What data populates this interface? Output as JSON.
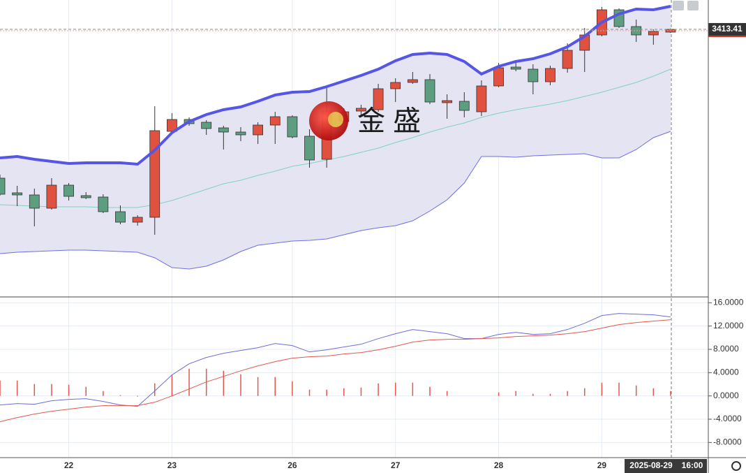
{
  "watermark": "金 盛",
  "crosshair": {
    "date": "2025-08-29",
    "time": "16:00"
  },
  "chart_data": [
    {
      "type": "candlestick",
      "categories": [
        null,
        null,
        null,
        null,
        "22",
        null,
        null,
        null,
        null,
        null,
        "23",
        null,
        null,
        null,
        null,
        null,
        null,
        "26",
        null,
        null,
        null,
        null,
        null,
        "27",
        null,
        null,
        null,
        null,
        null,
        "28",
        null,
        null,
        null,
        null,
        null,
        "29",
        null,
        null,
        null,
        null
      ],
      "open": [
        3349.5,
        3343.2,
        3342.3,
        3336.6,
        3346.5,
        3342.0,
        3341.4,
        3335.1,
        3330.6,
        3332.7,
        3369.6,
        3374.7,
        3373.5,
        3371.1,
        3369.3,
        3368.1,
        3372.3,
        3375.9,
        3367.5,
        3357.6,
        3373.8,
        3378.3,
        3378.9,
        3387.9,
        3390.6,
        3391.8,
        3381.9,
        3382.5,
        3378.0,
        3389.1,
        3397.2,
        3396.3,
        3390.9,
        3396.6,
        3404.4,
        3411.0,
        3421.8,
        3414.6,
        3411.0,
        3412.2
      ],
      "high": [
        3351.0,
        3346.2,
        3345.0,
        3349.5,
        3347.4,
        3343.5,
        3342.6,
        3337.8,
        3333.6,
        3380.4,
        3377.4,
        3375.6,
        3374.4,
        3372.0,
        3371.4,
        3373.5,
        3378.0,
        3376.5,
        3370.5,
        3388.2,
        3379.5,
        3381.0,
        3390.0,
        3392.4,
        3395.1,
        3394.2,
        3385.5,
        3386.4,
        3391.5,
        3399.0,
        3399.6,
        3398.4,
        3397.8,
        3407.4,
        3414.0,
        3423.0,
        3422.4,
        3417.6,
        3413.4,
        3413.8
      ],
      "low": [
        3342.0,
        3337.5,
        3328.8,
        3336.0,
        3339.9,
        3340.5,
        3334.5,
        3329.7,
        3329.1,
        3325.2,
        3369.0,
        3372.0,
        3368.1,
        3361.8,
        3365.4,
        3364.2,
        3364.2,
        3366.6,
        3354.0,
        3354.0,
        3373.2,
        3376.5,
        3378.0,
        3382.2,
        3390.0,
        3381.3,
        3375.0,
        3375.6,
        3376.2,
        3388.5,
        3395.4,
        3385.5,
        3389.4,
        3394.8,
        3395.1,
        3410.4,
        3414.0,
        3408.0,
        3406.8,
        3411.9
      ],
      "close": [
        3342.6,
        3342.3,
        3336.6,
        3346.5,
        3341.7,
        3341.1,
        3335.1,
        3330.6,
        3332.7,
        3369.9,
        3374.7,
        3372.9,
        3370.8,
        3369.3,
        3368.1,
        3372.3,
        3375.9,
        3367.2,
        3357.3,
        3378.3,
        3378.0,
        3379.5,
        3387.9,
        3390.6,
        3391.8,
        3382.2,
        3382.8,
        3378.6,
        3389.1,
        3396.9,
        3396.3,
        3390.9,
        3396.6,
        3404.4,
        3411.0,
        3421.8,
        3414.6,
        3411.0,
        3412.5,
        3413.41
      ],
      "up_color": "#e0513f",
      "down_color": "#5e9e80",
      "band_fill": "#e4e4f3",
      "series": [
        {
          "color": "#5656e6",
          "values": [
            3358.2,
            3358.8,
            3357.6,
            3356.7,
            3355.8,
            3356.1,
            3356.1,
            3356.1,
            3355.5,
            3361.5,
            3369.0,
            3373.8,
            3376.8,
            3378.9,
            3380.1,
            3382.5,
            3385.2,
            3386.4,
            3386.7,
            3388.8,
            3391.2,
            3393.6,
            3396.3,
            3399.9,
            3402.6,
            3403.2,
            3402.6,
            3399.6,
            3394.2,
            3397.5,
            3399.6,
            3400.8,
            3402.9,
            3405.9,
            3410.4,
            3416.4,
            3420.0,
            3422.1,
            3421.8,
            3423.3
          ]
        },
        {
          "color": "#7fd3bd",
          "values": [
            3338.1,
            3337.8,
            3337.5,
            3337.2,
            3337.2,
            3337.2,
            3336.9,
            3336.9,
            3336.9,
            3338.1,
            3339.9,
            3342.3,
            3344.7,
            3347.1,
            3348.6,
            3350.7,
            3352.5,
            3354.6,
            3355.8,
            3357.3,
            3358.8,
            3360.6,
            3362.4,
            3364.8,
            3366.9,
            3369.3,
            3371.4,
            3373.2,
            3375.6,
            3377.4,
            3378.9,
            3380.1,
            3381.3,
            3382.8,
            3384.6,
            3386.4,
            3388.5,
            3390.6,
            3393.3,
            3396.3
          ]
        },
        {
          "color": "#6e6ee6",
          "values": [
            3317.1,
            3317.7,
            3318.0,
            3318.3,
            3318.6,
            3318.6,
            3318.3,
            3318.0,
            3317.7,
            3315.3,
            3311.1,
            3310.5,
            3311.7,
            3314.4,
            3318.0,
            3320.7,
            3321.6,
            3322.5,
            3322.8,
            3323.4,
            3325.2,
            3327.0,
            3328.2,
            3329.1,
            3331.2,
            3335.4,
            3340.2,
            3347.4,
            3358.8,
            3358.8,
            3358.5,
            3359.1,
            3359.4,
            3359.7,
            3360.0,
            3358.2,
            3358.2,
            3361.8,
            3366.9,
            3369.6
          ]
        }
      ],
      "ylim": [
        3298.5,
        3426
      ],
      "last_price": 3413.41,
      "grid": true
    },
    {
      "type": "macd",
      "ylim": [
        -10.6,
        17.0
      ],
      "yticks": [
        {
          "value": 16,
          "label": "16.0000"
        },
        {
          "value": 12,
          "label": "12.0000"
        },
        {
          "value": 8,
          "label": "8.0000"
        },
        {
          "value": 4,
          "label": "4.0000"
        },
        {
          "value": 0,
          "label": "0.0000"
        },
        {
          "value": -4,
          "label": "-4.0000"
        },
        {
          "value": -8,
          "label": "-8.0000"
        }
      ],
      "grid": true,
      "series": [
        {
          "color": "#6c6cdc",
          "values": [
            -1.56,
            -1.32,
            -1.44,
            -0.84,
            -0.6,
            -0.48,
            -0.96,
            -1.56,
            -1.8,
            0.84,
            3.6,
            5.52,
            6.6,
            7.32,
            7.8,
            8.28,
            9.0,
            8.64,
            7.56,
            7.92,
            8.4,
            8.88,
            9.84,
            10.68,
            11.4,
            11.04,
            10.68,
            9.84,
            9.84,
            10.56,
            10.92,
            10.56,
            10.68,
            11.4,
            12.48,
            13.8,
            14.16,
            14.04,
            13.92,
            13.56
          ]
        },
        {
          "color": "#e2574b",
          "values": [
            -4.44,
            -3.72,
            -3.12,
            -2.64,
            -2.28,
            -1.92,
            -1.68,
            -1.68,
            -1.68,
            -1.08,
            0.0,
            1.2,
            2.4,
            3.36,
            4.32,
            5.16,
            5.88,
            6.48,
            6.72,
            6.84,
            7.2,
            7.44,
            7.92,
            8.52,
            9.24,
            9.6,
            9.72,
            9.72,
            9.84,
            9.96,
            10.2,
            10.32,
            10.44,
            10.68,
            11.04,
            11.64,
            12.24,
            12.6,
            12.84,
            13.08
          ]
        }
      ],
      "histogram": {
        "color": "#e2574b",
        "values": [
          2.64,
          2.64,
          2.04,
          2.04,
          1.92,
          1.56,
          0.84,
          0.12,
          -0.12,
          2.16,
          3.6,
          4.68,
          4.68,
          4.32,
          3.72,
          3.24,
          3.24,
          2.52,
          1.08,
          1.08,
          1.32,
          1.44,
          2.16,
          2.28,
          2.28,
          1.56,
          0.84,
          0.0,
          0.0,
          0.6,
          0.84,
          0.36,
          0.36,
          0.84,
          1.32,
          2.28,
          2.28,
          1.8,
          1.32,
          0.84
        ]
      }
    }
  ]
}
